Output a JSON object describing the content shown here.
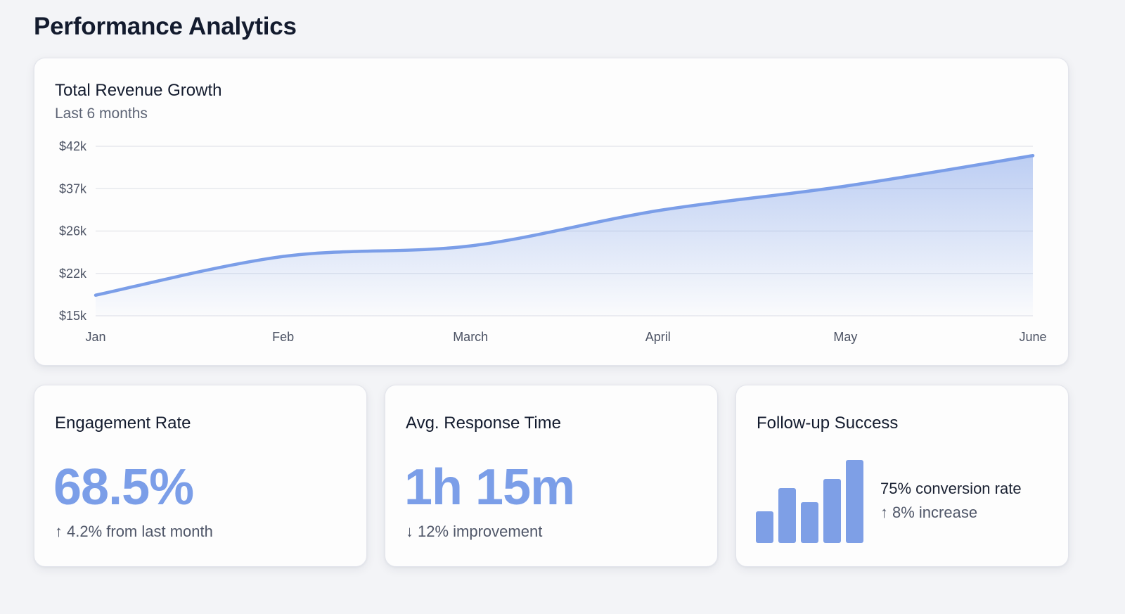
{
  "page": {
    "title": "Performance Analytics"
  },
  "revenue": {
    "title": "Total Revenue Growth",
    "subtitle": "Last 6 months"
  },
  "chart_data": {
    "type": "area",
    "title": "Total Revenue Growth",
    "subtitle": "Last 6 months",
    "xlabel": "",
    "ylabel": "",
    "x": [
      "Jan",
      "Feb",
      "March",
      "April",
      "May",
      "June"
    ],
    "y_tick_labels": [
      "$42k",
      "$37k",
      "$26k",
      "$22k",
      "$15k"
    ],
    "y_tick_values": [
      42,
      37,
      26,
      22,
      15
    ],
    "y_unit": "thousand USD",
    "series": [
      {
        "name": "Revenue",
        "values": [
          18.4,
          23.6,
          24.6,
          31.3,
          37.3,
          40.9
        ],
        "color": "#7b9ee8"
      }
    ],
    "ylim": [
      15,
      42
    ],
    "grid": true,
    "legend": "none"
  },
  "metrics": [
    {
      "title": "Engagement Rate",
      "value": "68.5%",
      "delta_icon": "↑",
      "delta_text": "4.2% from last month"
    },
    {
      "title": "Avg. Response Time",
      "value": "1h 15m",
      "delta_icon": "↓",
      "delta_text": "12% improvement"
    }
  ],
  "followup": {
    "title": "Follow-up Success",
    "bar_values": [
      38,
      66,
      49,
      77,
      100
    ],
    "conversion_text": "75% conversion rate",
    "delta_icon": "↑",
    "delta_text": "8% increase"
  },
  "colors": {
    "accent": "#7b9ee8",
    "background": "#f3f4f7",
    "card": "#fdfdfd",
    "title": "#131b2e",
    "muted": "#5d6475"
  }
}
